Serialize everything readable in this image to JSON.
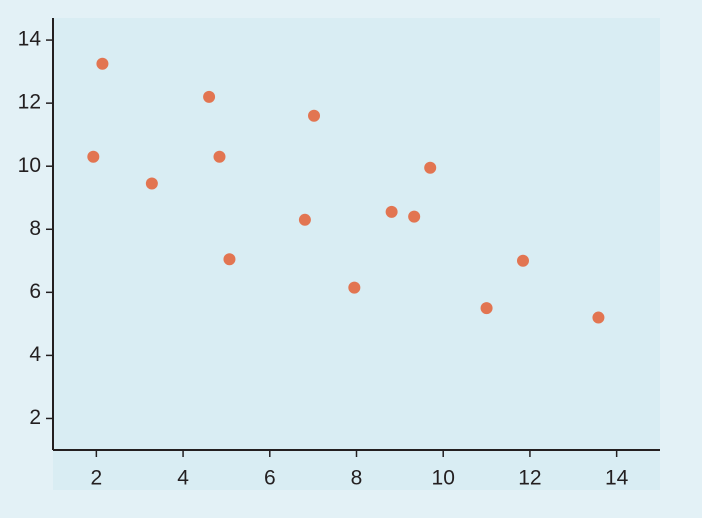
{
  "chart_data": {
    "type": "scatter",
    "x": [
      1.93,
      2.14,
      3.28,
      4.6,
      4.84,
      5.07,
      6.81,
      7.02,
      7.95,
      8.81,
      9.33,
      9.7,
      11.0,
      11.84,
      13.58
    ],
    "values": [
      10.3,
      13.25,
      9.45,
      12.2,
      10.3,
      7.05,
      8.3,
      11.6,
      6.15,
      8.55,
      8.4,
      9.95,
      5.5,
      7.0,
      5.2
    ],
    "color": "#e27551",
    "xlim": [
      1,
      15
    ],
    "xticks": [
      2,
      4,
      6,
      8,
      10,
      12,
      14
    ],
    "ylim": [
      1,
      14.7
    ],
    "yticks": [
      2,
      4,
      6,
      8,
      10,
      12,
      14
    ]
  }
}
